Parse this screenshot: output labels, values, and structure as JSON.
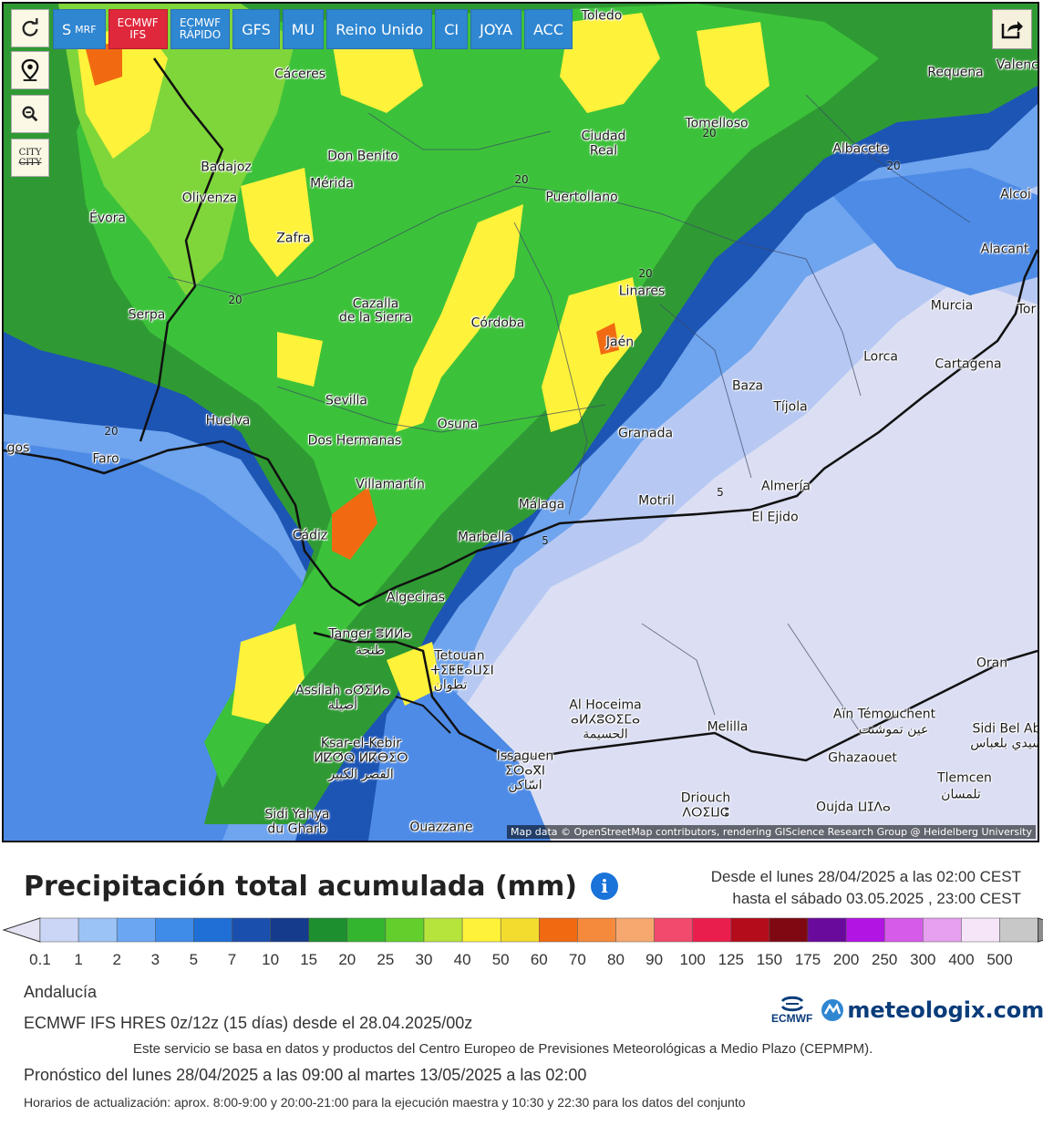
{
  "toolbar": {
    "buttons": [
      {
        "label": "S",
        "sub": "MRF",
        "style": "blue"
      },
      {
        "label": "ECMWF",
        "sub": "IFS",
        "style": "red"
      },
      {
        "label": "ECMWF",
        "sub": "RÁPIDO",
        "style": "blue"
      },
      {
        "label": "GFS",
        "style": "blue"
      },
      {
        "label": "MU",
        "style": "blue"
      },
      {
        "label": "Reino Unido",
        "style": "blue"
      },
      {
        "label": "CI",
        "style": "blue"
      },
      {
        "label": "JOYA",
        "style": "blue"
      },
      {
        "label": "ACC",
        "style": "blue"
      }
    ],
    "side_buttons": [
      "refresh-icon",
      "location-pin-icon",
      "zoom-icon",
      "city-label-toggle"
    ],
    "city_toggle_label": "CITY"
  },
  "map": {
    "attribution": "Map data © OpenStreetMap contributors, rendering GIScience Research Group @ Heidelberg University",
    "cities": [
      "Toledo",
      "Cáceres",
      "Requena",
      "Valencia",
      "Tomelloso",
      "Ciudad",
      "Real",
      "Albacete",
      "Badajoz",
      "Don Benito",
      "Mérida",
      "Olivenza",
      "Puertollano",
      "Alcoi",
      "Évora",
      "Zafra",
      "Alacant",
      "Linares",
      "Murcia",
      "Tor",
      "Serpa",
      "Cazalla",
      "de la Sierra",
      "Córdoba",
      "Jaén",
      "Lorca",
      "Cartagena",
      "Sevilla",
      "Baza",
      "Tíjola",
      "Huelva",
      "Osuna",
      "Granada",
      "Dos Hermanas",
      "Faro",
      "gos",
      "Villamartín",
      "Almería",
      "Málaga",
      "Motril",
      "El Ejido",
      "Cádiz",
      "Marbella",
      "Algeciras",
      "Tanger ⴻⵍⵍⴰ",
      "طنجة",
      "Tetouan",
      "ⵜⵉⵟⵟⴰⵡⵉⵏ",
      "تطوان",
      "Assilah ⴰⵚⵉⵍⴰ",
      "أصيلة",
      "Oran",
      "Al Hoceima",
      "ⴰⵍⵃⵓⵙⵉⵎⴰ",
      "الحسيمة",
      "Aïn Témouchent",
      "عين تموشنت",
      "Melilla",
      "Sidi Bel Ab",
      "سيدي بلعباس",
      "Ksar-el-Kebir",
      "ⵍⵇⵚⵕ ⵍⴽⴱⵉⵔ",
      "القصر الكبير",
      "Ghazaouet",
      "Issaguen",
      "ⵉⵙⴰⴳⵏ",
      "اسّاكن",
      "Tlemcen",
      "تلمسان",
      "Driouch",
      "ⴷⵔⵉⵡⵛ",
      "Oujda ⵡⵊⴷⴰ",
      "Sidi Yahya",
      "du Gharb",
      "Ouazzane"
    ],
    "isohyets": [
      "20",
      "20",
      "20",
      "20",
      "20",
      "20",
      "5",
      "5"
    ]
  },
  "legend": {
    "title": "Precipitación total acumulada (mm)",
    "info_icon": "i",
    "period_from": "Desde el lunes 28/04/2025 a  las 02:00  CEST",
    "period_to": "hasta el sábado 03.05.2025 , 23:00  CEST",
    "ticks": [
      "0.1",
      "1",
      "2",
      "3",
      "5",
      "7",
      "10",
      "15",
      "20",
      "25",
      "30",
      "40",
      "50",
      "60",
      "70",
      "80",
      "90",
      "100",
      "125",
      "150",
      "175",
      "200",
      "250",
      "300",
      "400",
      "500"
    ],
    "colors": [
      "#e4e3f3",
      "#cbd5f5",
      "#9cc3f6",
      "#6aa6f2",
      "#3f8be8",
      "#1f6fd7",
      "#1b4fae",
      "#153b8c",
      "#1e8f2e",
      "#34b530",
      "#62cf2c",
      "#b6e43c",
      "#fff33a",
      "#f4dc2e",
      "#f16a12",
      "#f58a3c",
      "#f7a86e",
      "#f24a6c",
      "#ea1e4d",
      "#b40c1b",
      "#7f0913",
      "#6a0a9c",
      "#b214e3",
      "#d55be9",
      "#e79ff0",
      "#f6e5f8",
      "#c8c8c8",
      "#8c8c8c"
    ],
    "region": "Andalucía",
    "model": "ECMWF IFS HRES 0z/12z (15 días) desde el 28.04.2025/00z",
    "service_note": "Este servicio se basa en datos y productos del Centro Europeo de Previsiones Meteorológicas a Medio Plazo (CEPMPM).",
    "forecast": "Pronóstico del lunes 28/04/2025 a las 09:00 al martes 13/05/2025 a las 02:00",
    "update_hours": "Horarios de actualización: aprox. 8:00-9:00 y 20:00-21:00 para la ejecución maestra y 10:30 y 22:30 para los datos del conjunto",
    "logo_ecmwf": "ECMWF",
    "logo_meteologix": "meteologix.com"
  }
}
